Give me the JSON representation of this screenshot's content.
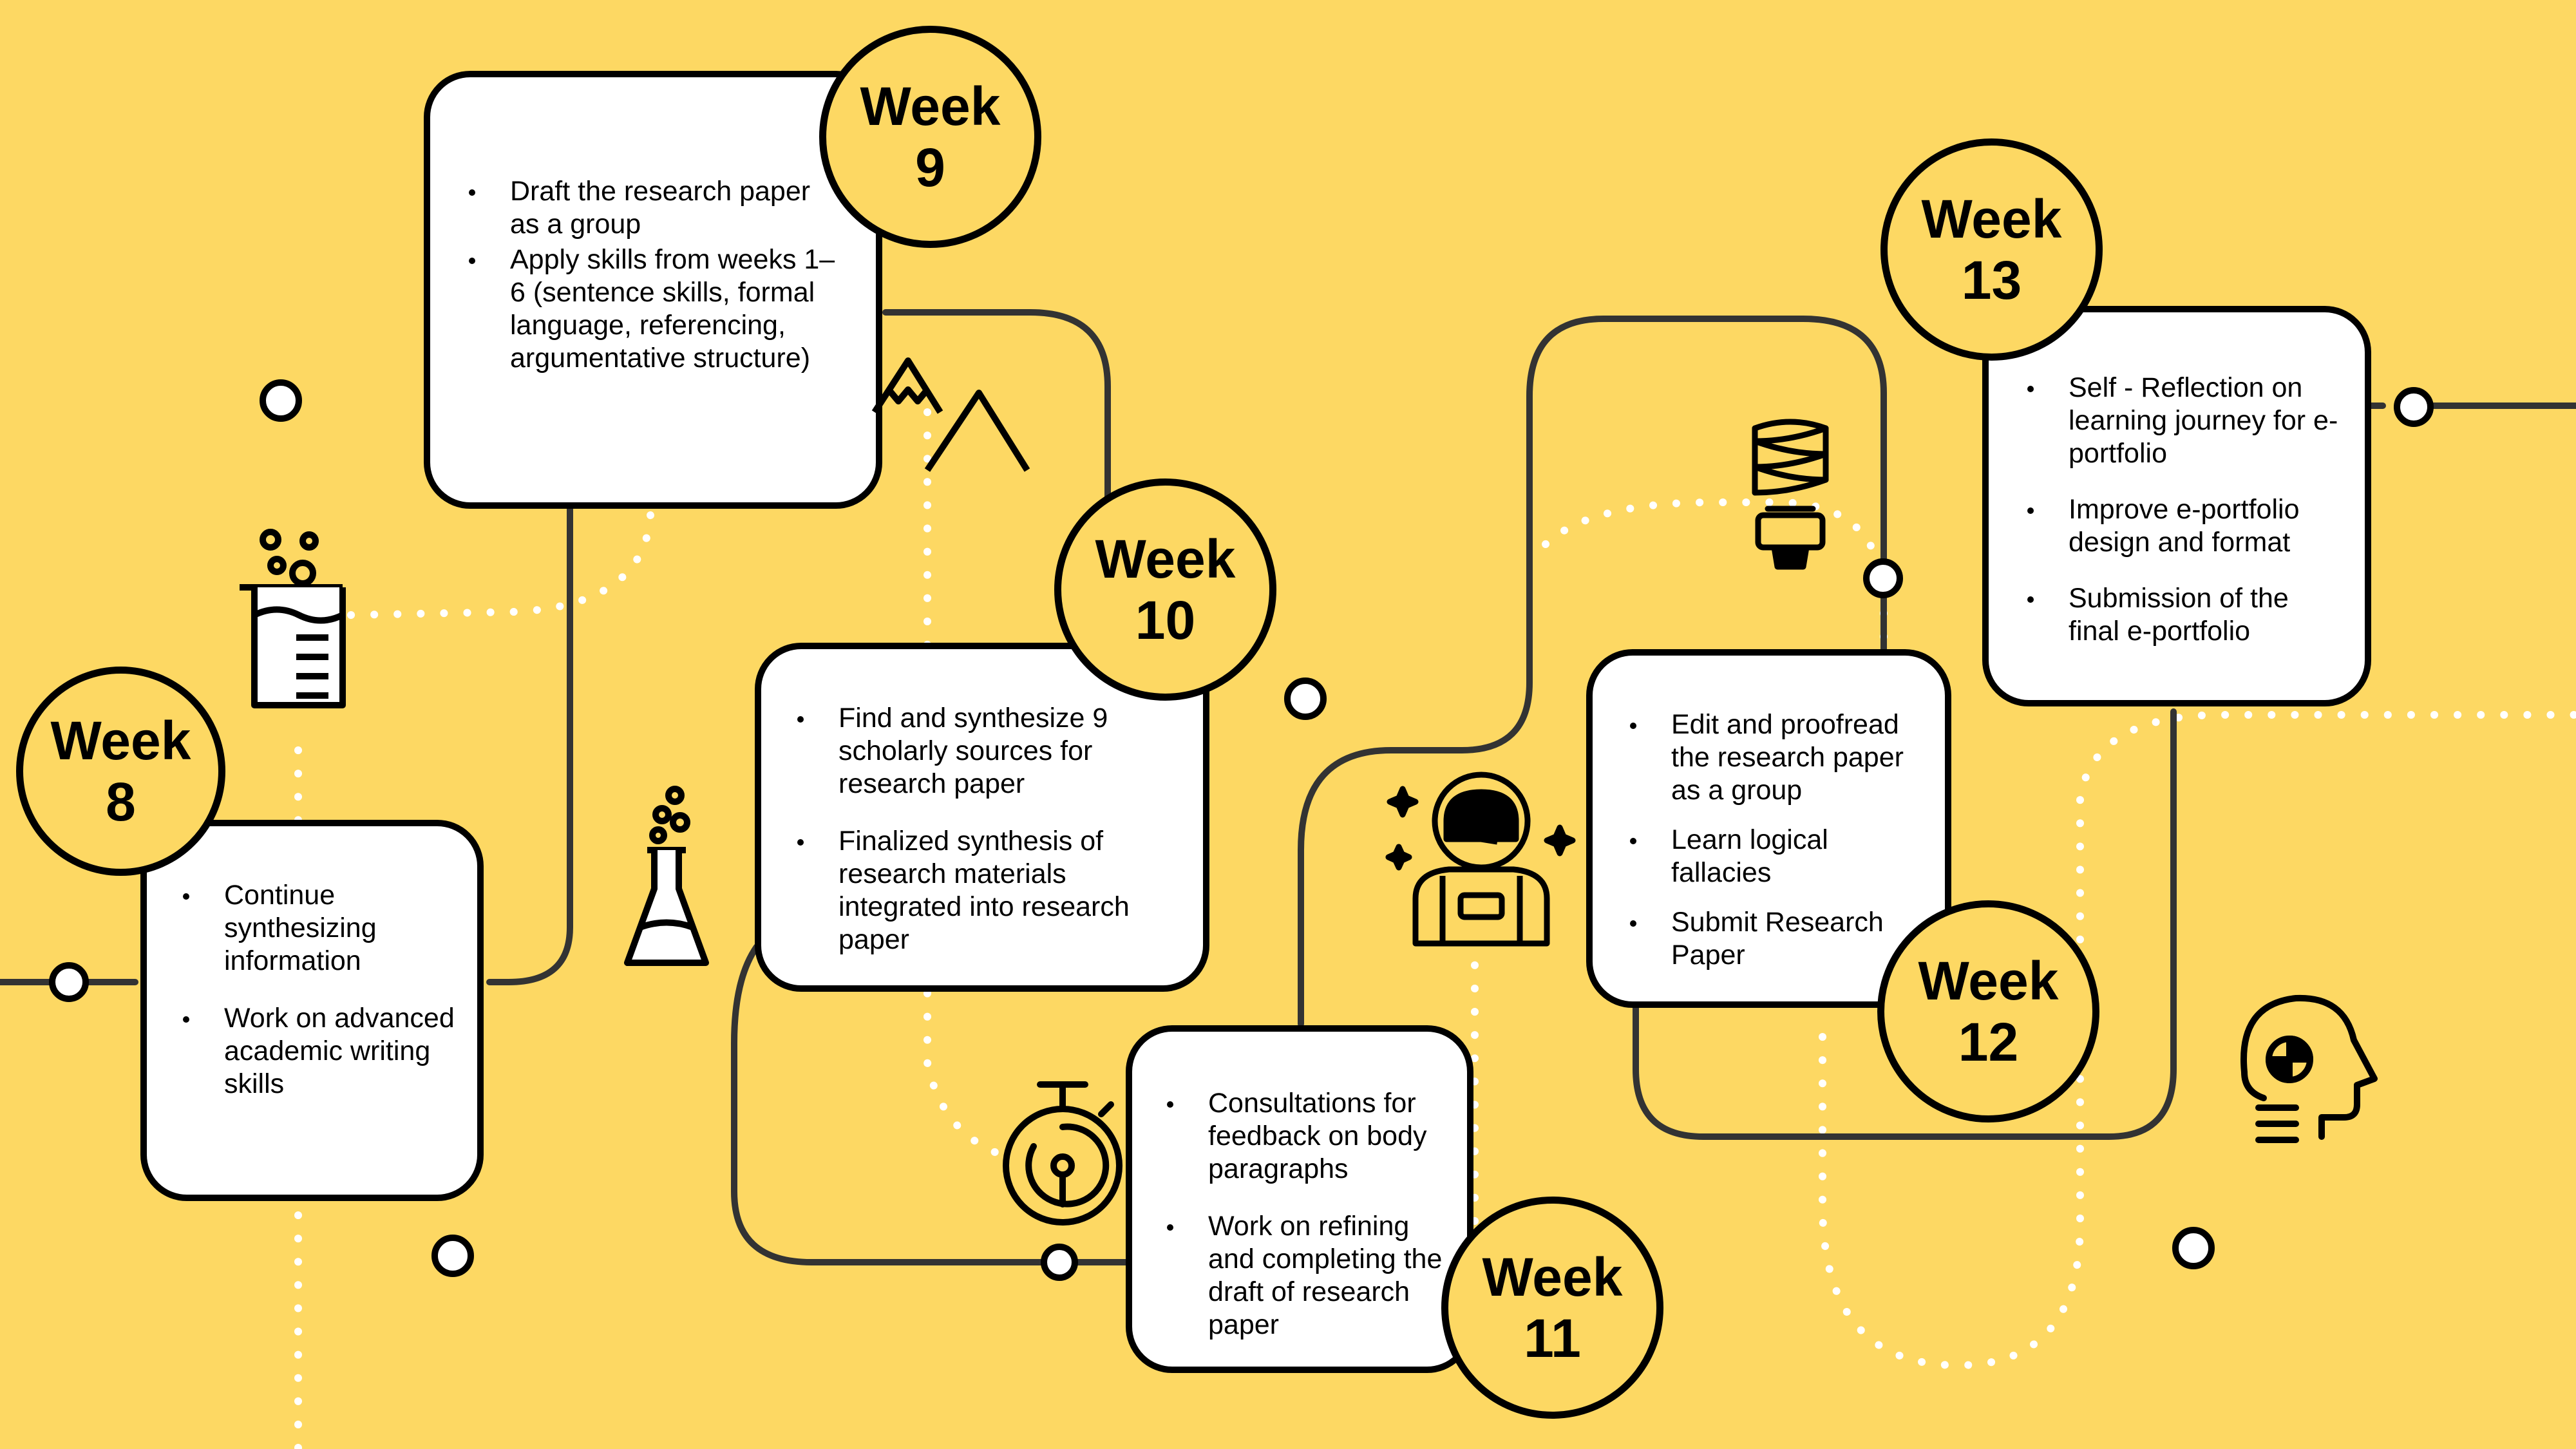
{
  "colors": {
    "background": "#FDD863",
    "line": "#333333",
    "card": "#FFFFFF",
    "dots": "#FFFFFF"
  },
  "weeks": [
    {
      "word": "Week",
      "number": "8",
      "items": [
        "Continue synthesizing information",
        "Work on advanced academic writing skills"
      ]
    },
    {
      "word": "Week",
      "number": "9",
      "items": [
        "Draft the research paper as a group",
        "Apply skills from weeks 1–6 (sentence skills, formal language, referencing, argumentative structure)"
      ]
    },
    {
      "word": "Week",
      "number": "10",
      "items": [
        "Find and synthesize 9 scholarly sources for research paper",
        "Finalized synthesis of research materials integrated into research paper"
      ]
    },
    {
      "word": "Week",
      "number": "11",
      "items": [
        "Consultations for feedback on body paragraphs",
        "Work on refining and completing the draft of research paper"
      ]
    },
    {
      "word": "Week",
      "number": "12",
      "items": [
        "Edit and proofread the research paper as a group",
        "Learn logical fallacies",
        "Submit Research Paper"
      ]
    },
    {
      "word": "Week",
      "number": "13",
      "items": [
        "Self - Reflection on learning journey for e-portfolio",
        "Improve e-portfolio design and format",
        "Submission of the final e-portfolio"
      ]
    }
  ],
  "icons": [
    "beaker-icon",
    "mountain-icon",
    "flask-icon",
    "stopwatch-icon",
    "astronaut-icon",
    "lightbulb-icon",
    "robot-head-icon"
  ]
}
